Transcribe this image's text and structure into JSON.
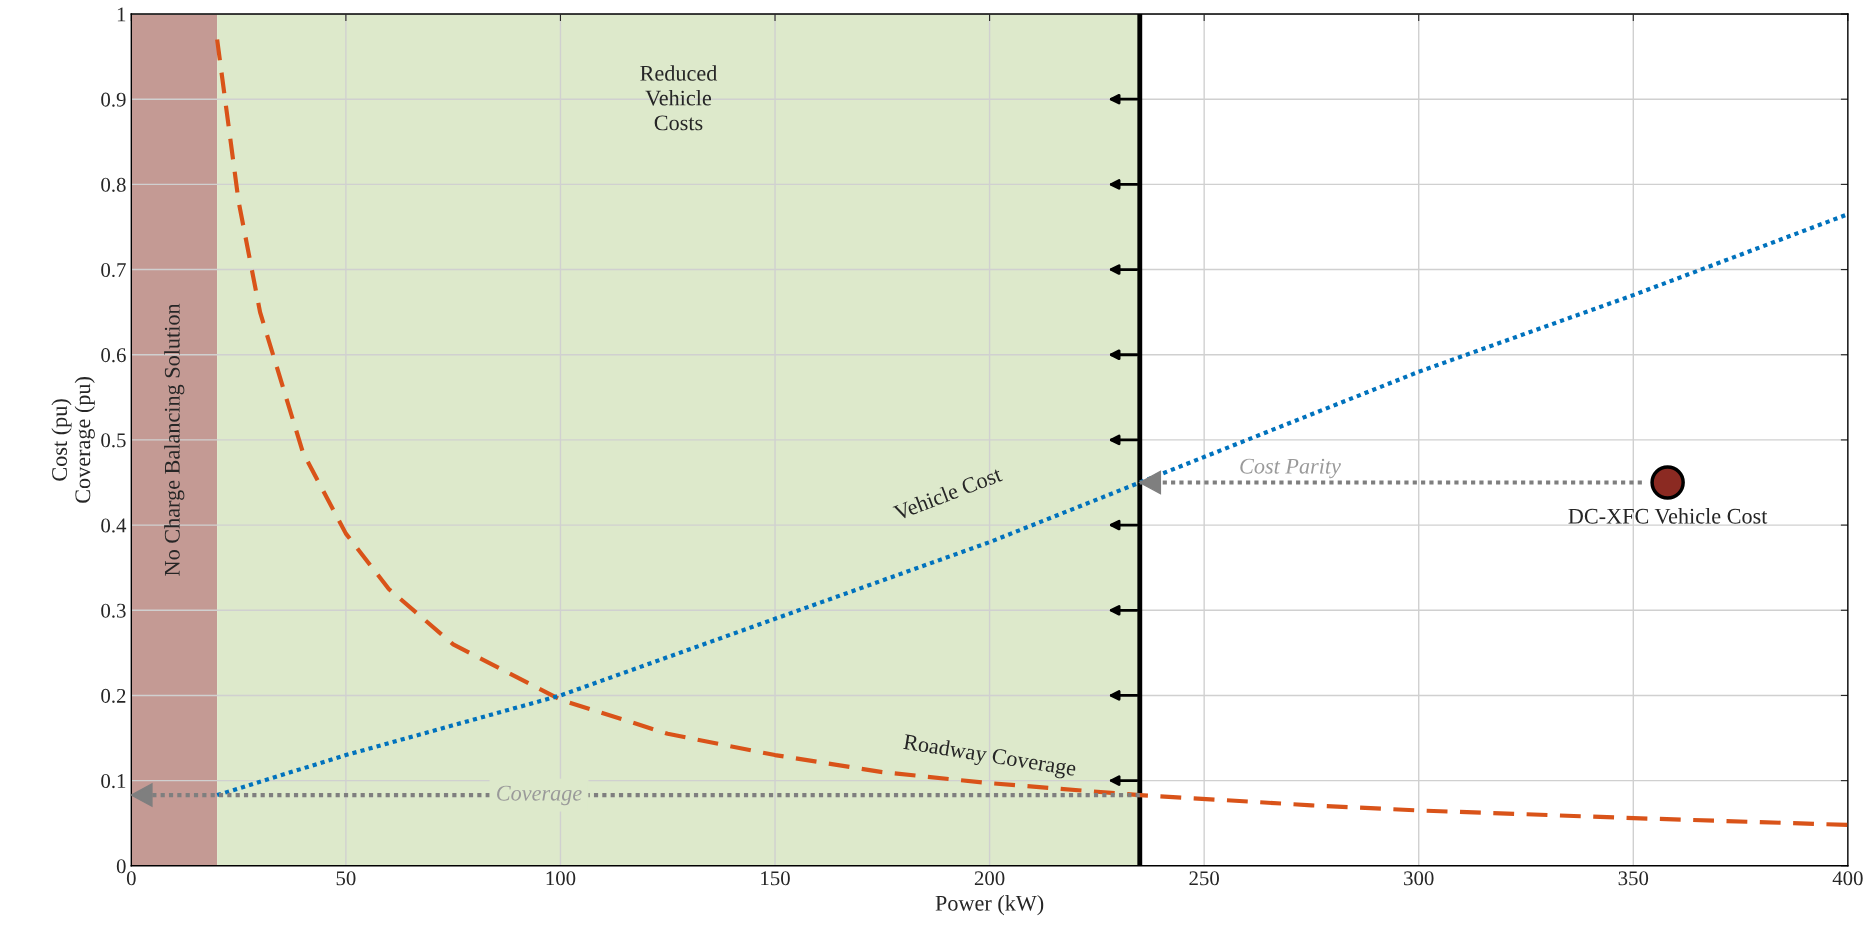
{
  "chart_data": {
    "type": "line",
    "xlabel": "Power (kW)",
    "ylabel": "Cost (pu)\nCoverage (pu)",
    "xlim": [
      0,
      400
    ],
    "ylim": [
      0,
      1
    ],
    "xticks": [
      0,
      50,
      100,
      150,
      200,
      250,
      300,
      350,
      400
    ],
    "yticks": [
      0,
      0.1,
      0.2,
      0.3,
      0.4,
      0.5,
      0.6,
      0.7,
      0.8,
      0.9,
      1
    ],
    "grid": true,
    "legend": false,
    "series": [
      {
        "color": "#d95319",
        "line_style": "dashed",
        "x": [
          20,
          25,
          30,
          40,
          50,
          60,
          75,
          100,
          125,
          150,
          175,
          200,
          235,
          275,
          300,
          350,
          400
        ],
        "values": [
          0.97,
          0.78,
          0.65,
          0.485,
          0.39,
          0.325,
          0.26,
          0.195,
          0.155,
          0.13,
          0.11,
          0.097,
          0.083,
          0.071,
          0.065,
          0.056,
          0.048
        ]
      },
      {
        "color": "#0072bd",
        "line_style": "dotted",
        "x": [
          20,
          50,
          100,
          150,
          200,
          235,
          300,
          350,
          400
        ],
        "values": [
          0.083,
          0.13,
          0.2,
          0.29,
          0.38,
          0.45,
          0.58,
          0.67,
          0.765
        ]
      },
      {
        "color": "#7f7f7f",
        "line_style": "dotted",
        "x": [
          352,
          235
        ],
        "values": [
          0.45,
          0.45
        ]
      },
      {
        "color": "#7f7f7f",
        "line_style": "dotted",
        "x": [
          235,
          0
        ],
        "values": [
          0.083,
          0.083
        ]
      },
      {
        "type": "scatter",
        "color": "#8b2a22",
        "marker": "circle",
        "x": [
          358
        ],
        "values": [
          0.45
        ]
      }
    ],
    "ref_lines": [
      {
        "axis": "x",
        "value": 235,
        "color": "#000000",
        "line_style": "solid"
      }
    ],
    "bands": [
      {
        "axis": "x",
        "from": 0,
        "to": 20,
        "label": "No Charge Balancing Solution",
        "color": "#c49a94"
      },
      {
        "axis": "x",
        "from": 20,
        "to": 235,
        "label": "Reduced\nVehicle\nCosts",
        "color": "#dde9cb"
      }
    ],
    "annotations": [
      "Vehicle Cost",
      "Roadway Coverage",
      {
        "text": "Cost Parity",
        "x": 270,
        "y": 0.45
      },
      {
        "text": "Coverage",
        "x": 95,
        "y": 0.083
      },
      {
        "text": "DC-XFC Vehicle Cost",
        "x": 358,
        "y": 0.45
      }
    ]
  }
}
